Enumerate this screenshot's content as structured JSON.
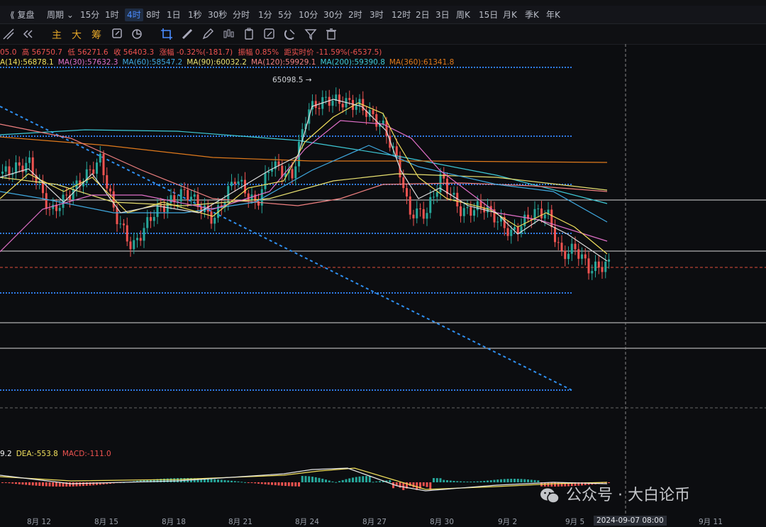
{
  "timeframes": [
    "复盘",
    "周期",
    "15分",
    "1时",
    "4时",
    "8时",
    "1日",
    "1秒",
    "30秒",
    "分时",
    "1分",
    "5分",
    "10分",
    "30分",
    "2时",
    "3时",
    "12时",
    "2日",
    "3日",
    "周K",
    "15日",
    "月K",
    "季K",
    "年K"
  ],
  "active_timeframe": "4时",
  "toolbar_text": [
    "主",
    "大",
    "筹"
  ],
  "ohlc": {
    "open": "05.0",
    "high": "高 56750.7",
    "low": "低 56271.6",
    "close": "收 56403.3",
    "change": "涨幅 -0.32%(-181.7)",
    "amplitude": "振幅 0.85%",
    "distance": "距实时价 -11.59%(-6537.5)"
  },
  "ma_legend": [
    {
      "label": "A(14):56878.1",
      "color": "#f2e05c"
    },
    {
      "label": "MA(30):57632.3",
      "color": "#e070c8"
    },
    {
      "label": "MA(60):58547.2",
      "color": "#3fa9e0"
    },
    {
      "label": "MA(90):60032.2",
      "color": "#e8e070"
    },
    {
      "label": "MA(120):59929.1",
      "color": "#f08080"
    },
    {
      "label": "MA(200):59390.8",
      "color": "#3ec9d6"
    },
    {
      "label": "MA(360):61341.8",
      "color": "#e07a1c"
    }
  ],
  "high_marker": "65098.5",
  "macd_legend": [
    {
      "label": "9.2",
      "color": "#f2f2f2"
    },
    {
      "label": "DEA:-553.8",
      "color": "#f2e05c"
    },
    {
      "label": "MACD:-111.0",
      "color": "#ef5350"
    }
  ],
  "x_labels": [
    "8月 12",
    "8月 15",
    "8月 18",
    "8月 21",
    "8月 24",
    "8月 27",
    "8月 30",
    "9月 2",
    "9月 5",
    "9月 11"
  ],
  "current_date": "2024-09-07 08:00",
  "watermark": "公众号 · 大白论币",
  "colors": {
    "up": "#26a69a",
    "down": "#ef5350",
    "accent": "#4a8cff"
  }
}
